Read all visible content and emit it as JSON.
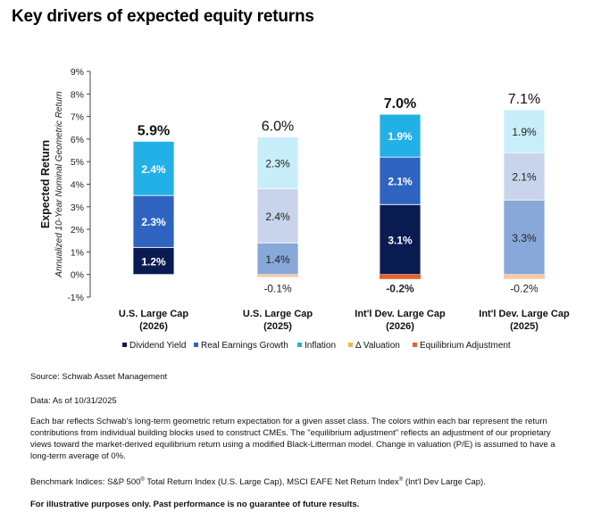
{
  "title": "Key drivers of expected equity returns",
  "chart_data": {
    "type": "bar",
    "stacked": true,
    "ylabel": "Expected Return",
    "ylabel_sub": "Annualized 10-Year Nominal Geometric Return",
    "ylim": [
      -1,
      9
    ],
    "yticks": [
      "-1%",
      "0%",
      "1%",
      "2%",
      "3%",
      "4%",
      "5%",
      "6%",
      "7%",
      "8%",
      "9%"
    ],
    "categories": [
      [
        "U.S. Large Cap",
        "(2026)"
      ],
      [
        "U.S. Large Cap",
        "(2025)"
      ],
      [
        "Int'l Dev. Large Cap",
        "(2026)"
      ],
      [
        "Int'l Dev. Large Cap",
        "(2025)"
      ]
    ],
    "series": [
      {
        "name": "Dividend Yield",
        "values": [
          1.2,
          0,
          3.1,
          0
        ]
      },
      {
        "name": "Real Earnings Growth",
        "values": [
          2.3,
          1.4,
          2.1,
          3.3
        ]
      },
      {
        "name": "Inflation",
        "values": [
          2.4,
          2.4,
          1.9,
          2.1
        ]
      },
      {
        "name": "Δ Valuation",
        "values": [
          0,
          2.3,
          0,
          1.9
        ]
      },
      {
        "name": "Equilibrium Adjustment",
        "values": [
          0,
          -0.1,
          -0.2,
          -0.2
        ]
      }
    ],
    "bar_colors": [
      [
        "#0a1b52",
        "#2e64c0",
        "#22b0e6"
      ],
      [
        "#87a8d9",
        "#c8d4eb",
        "#c8eef9"
      ],
      [
        "#0a1b52",
        "#2e64c0",
        "#22b0e6"
      ],
      [
        "#87a8d9",
        "#c8d4eb",
        "#c8eef9"
      ]
    ],
    "adjustment_colors": [
      "#e8602c",
      "#f8c9a4",
      "#e8602c",
      "#f8c9a4"
    ],
    "segment_labels": [
      [
        "1.2%",
        "2.3%",
        "2.4%"
      ],
      [
        "1.4%",
        "2.4%",
        "2.3%"
      ],
      [
        "3.1%",
        "2.1%",
        "1.9%"
      ],
      [
        "3.3%",
        "2.1%",
        "1.9%"
      ]
    ],
    "totals": [
      "5.9%",
      "6.0%",
      "7.0%",
      "7.1%"
    ],
    "totals_bold": [
      true,
      false,
      true,
      false
    ],
    "adjustment_labels": [
      "",
      "-0.1%",
      "-0.2%",
      "-0.2%"
    ],
    "legend": [
      {
        "name": "Dividend Yield",
        "color": "#0a1b52"
      },
      {
        "name": "Real Earnings Growth",
        "color": "#2e64c0"
      },
      {
        "name": "Inflation",
        "color": "#22b0e6"
      },
      {
        "name": "Δ Valuation",
        "color": "#f5b642"
      },
      {
        "name": "Equilibrium Adjustment",
        "color": "#e8602c"
      }
    ],
    "legend_position": "bottom",
    "grid": false
  },
  "notes": {
    "source": "Source: Schwab Asset Management",
    "data_as_of": "Data: As of 10/31/2025",
    "description": "Each bar reflects Schwab's long-term geometric return expectation for a given asset class. The colors within each bar represent the return contributions from individual building blocks used to construct CMEs. The \"equilibrium adjustment\" reflects an adjustment of our proprietary views toward the market-derived equilibrium return using a modified Black-Litterman model. Change in valuation (P/E) is assumed to have a long-term average of 0%.",
    "benchmark_prefix": "Benchmark Indices: S&P 500",
    "benchmark_mid": " Total Return Index (U.S. Large Cap), MSCI EAFE Net Return Index",
    "benchmark_suffix": " (Int'l Dev Large Cap).",
    "registered_mark": "®",
    "disclaimer": "For illustrative purposes only. Past performance is no guarantee of future results."
  }
}
